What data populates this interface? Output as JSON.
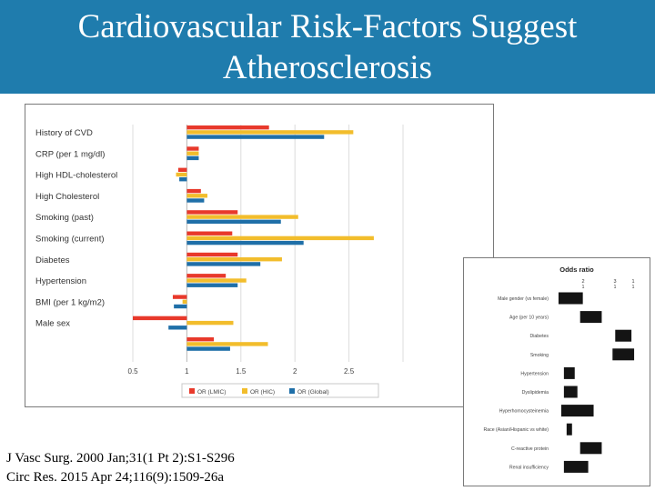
{
  "slide": {
    "title_line1": "Cardiovascular Risk-Factors Suggest",
    "title_line2": "Atherosclerosis",
    "references": [
      "J Vasc Surg. 2000 Jan;31(1 Pt 2):S1-S296",
      "Circ Res. 2015 Apr 24;116(9):1509-26a"
    ]
  },
  "colors": {
    "header": "#1f7cad",
    "lmic": "#e8392b",
    "hic": "#f2bd2c",
    "global": "#1f6fa8",
    "odds_bar": "#141414"
  },
  "chart_data": [
    {
      "type": "bar",
      "orientation": "horizontal",
      "baseline": 1,
      "categories": [
        "History of CVD",
        "CRP (per 1 mg/dl)",
        "High HDL-cholesterol",
        "High Cholesterol",
        "Smoking (past)",
        "Smoking (current)",
        "Diabetes",
        "Hypertension",
        "BMI (per 1 kg/m2)",
        "Male sex"
      ],
      "series": [
        {
          "name": "OR (LMIC)",
          "values": [
            1.76,
            1.11,
            0.92,
            1.13,
            1.47,
            1.42,
            1.47,
            1.36,
            0.87,
            0.5
          ]
        },
        {
          "name": "OR (HIC)",
          "values": [
            2.54,
            1.11,
            0.9,
            1.19,
            2.03,
            2.73,
            1.88,
            1.55,
            0.96,
            1.43
          ]
        },
        {
          "name": "OR (Global)",
          "values": [
            2.27,
            1.11,
            0.93,
            1.16,
            1.87,
            2.08,
            1.68,
            1.47,
            0.88,
            0.83
          ]
        }
      ],
      "extra_bars": [
        {
          "series": "OR (LMIC)",
          "value": 1.25
        },
        {
          "series": "OR (HIC)",
          "value": 1.75
        },
        {
          "series": "OR (Global)",
          "value": 1.4
        }
      ],
      "x_ticks": [
        "0.5",
        "1",
        "1.5",
        "2",
        "2.5"
      ],
      "xlim": [
        0.5,
        3.0
      ],
      "grid": true,
      "legend": "bottom"
    },
    {
      "type": "bar",
      "orientation": "horizontal",
      "title": "Odds ratio",
      "tick_labels": [
        "2",
        "3",
        "1"
      ],
      "tick_sublabels": [
        "1",
        "1",
        "1"
      ],
      "xlim": [
        0.8,
        4.0
      ],
      "categories": [
        "Male gender (vs female)",
        "Age (per 10 years)",
        "Diabetes",
        "Smoking",
        "Hypertension",
        "Dyslipidemia",
        "Hyperhomocysteinemia",
        "Race (Asian/Hispanic vs white)",
        "C-reactive protein",
        "Renal insufficiency"
      ],
      "ranges": [
        [
          1.0,
          1.9
        ],
        [
          1.8,
          2.6
        ],
        [
          3.1,
          3.7
        ],
        [
          3.0,
          3.8
        ],
        [
          1.2,
          1.6
        ],
        [
          1.2,
          1.7
        ],
        [
          1.1,
          2.3
        ],
        [
          1.3,
          1.5
        ],
        [
          1.8,
          2.6
        ],
        [
          1.2,
          2.1
        ]
      ]
    }
  ]
}
